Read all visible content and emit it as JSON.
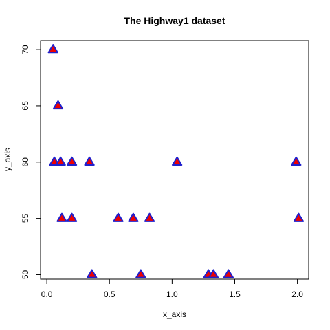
{
  "chart_data": {
    "type": "scatter",
    "title": "The Highway1 dataset",
    "xlabel": "x_axis",
    "ylabel": "y_axis",
    "xlim": [
      -0.05,
      2.09
    ],
    "ylim": [
      49.6,
      70.8
    ],
    "xticks": [
      {
        "value": 0.0,
        "label": "0.0"
      },
      {
        "value": 0.5,
        "label": "0.5"
      },
      {
        "value": 1.0,
        "label": "1.0"
      },
      {
        "value": 1.5,
        "label": "1.5"
      },
      {
        "value": 2.0,
        "label": "2.0"
      }
    ],
    "yticks": [
      {
        "value": 50,
        "label": "50"
      },
      {
        "value": 55,
        "label": "55"
      },
      {
        "value": 60,
        "label": "60"
      },
      {
        "value": 65,
        "label": "65"
      },
      {
        "value": 70,
        "label": "70"
      }
    ],
    "marker": {
      "shape": "triangle",
      "fill": "#ee0000",
      "stroke": "#2020cc"
    },
    "points": [
      {
        "x": 0.05,
        "y": 70
      },
      {
        "x": 0.09,
        "y": 65
      },
      {
        "x": 0.06,
        "y": 60
      },
      {
        "x": 0.11,
        "y": 60
      },
      {
        "x": 0.2,
        "y": 60
      },
      {
        "x": 0.34,
        "y": 60
      },
      {
        "x": 1.04,
        "y": 60
      },
      {
        "x": 1.99,
        "y": 60
      },
      {
        "x": 0.12,
        "y": 55
      },
      {
        "x": 0.2,
        "y": 55
      },
      {
        "x": 0.57,
        "y": 55
      },
      {
        "x": 0.69,
        "y": 55
      },
      {
        "x": 0.82,
        "y": 55
      },
      {
        "x": 2.01,
        "y": 55
      },
      {
        "x": 0.36,
        "y": 50
      },
      {
        "x": 0.75,
        "y": 50
      },
      {
        "x": 1.29,
        "y": 50
      },
      {
        "x": 1.33,
        "y": 50
      },
      {
        "x": 1.45,
        "y": 50
      }
    ]
  }
}
